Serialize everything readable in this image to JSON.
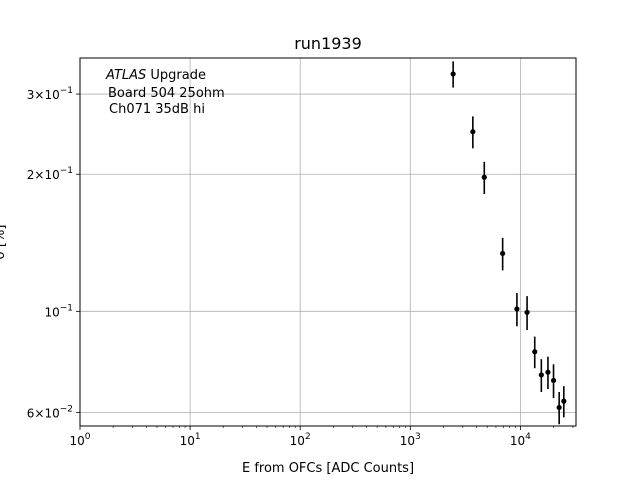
{
  "chart_data": {
    "type": "scatter",
    "title": "run1939",
    "xlabel": "E from OFCs [ADC Counts]",
    "ylabel": "σ [%]",
    "x_scale": "log",
    "y_scale": "log",
    "xlim": [
      1,
      32000
    ],
    "ylim": [
      0.056,
      0.36
    ],
    "grid": true,
    "x_ticks": [
      {
        "value": 1,
        "label": "10^0"
      },
      {
        "value": 10,
        "label": "10^1"
      },
      {
        "value": 100,
        "label": "10^2"
      },
      {
        "value": 1000,
        "label": "10^3"
      },
      {
        "value": 10000,
        "label": "10^4"
      }
    ],
    "y_ticks": [
      {
        "value": 0.06,
        "label": "6×10^−2"
      },
      {
        "value": 0.1,
        "label": "10^−1"
      },
      {
        "value": 0.2,
        "label": "2×10^−1"
      },
      {
        "value": 0.3,
        "label": "3×10^−1"
      }
    ],
    "annotation": {
      "lines": [
        "ATLAS Upgrade",
        "Board 504 25ohm",
        "Ch071 35dB hi"
      ],
      "italic_word": "ATLAS"
    },
    "series": [
      {
        "color": "#000000",
        "marker": "circle",
        "points": [
          {
            "x": 2450,
            "y": 0.332,
            "err": 0.022
          },
          {
            "x": 3700,
            "y": 0.248,
            "err": 0.02
          },
          {
            "x": 4700,
            "y": 0.197,
            "err": 0.016
          },
          {
            "x": 6900,
            "y": 0.134,
            "err": 0.011
          },
          {
            "x": 9300,
            "y": 0.1012,
            "err": 0.0085
          },
          {
            "x": 11500,
            "y": 0.0995,
            "err": 0.0085
          },
          {
            "x": 13500,
            "y": 0.0815,
            "err": 0.0065
          },
          {
            "x": 15500,
            "y": 0.0725,
            "err": 0.006
          },
          {
            "x": 17800,
            "y": 0.0735,
            "err": 0.006
          },
          {
            "x": 20000,
            "y": 0.0705,
            "err": 0.006
          },
          {
            "x": 22500,
            "y": 0.0615,
            "err": 0.005
          },
          {
            "x": 24800,
            "y": 0.0635,
            "err": 0.005
          }
        ]
      }
    ]
  }
}
